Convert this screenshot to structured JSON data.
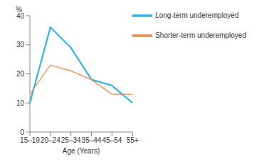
{
  "chart_data": {
    "type": "line",
    "xlabel": "Age (Years)",
    "ylabel": "%",
    "categories": [
      "15–19",
      "20–24",
      "25–34",
      "35–44",
      "45–54",
      "55+"
    ],
    "series": [
      {
        "name": "Long-term underemployed",
        "color": "#2fb4e6",
        "values": [
          10,
          36,
          29,
          18,
          16,
          10
        ]
      },
      {
        "name": "Shorter-term underemployed",
        "color": "#e8874f",
        "values": [
          13,
          23,
          21,
          18,
          13,
          13
        ]
      }
    ],
    "ylim": [
      0,
      40
    ],
    "yticks": [
      0,
      10,
      20,
      30,
      40
    ],
    "grid": false,
    "legend": "upper right"
  }
}
